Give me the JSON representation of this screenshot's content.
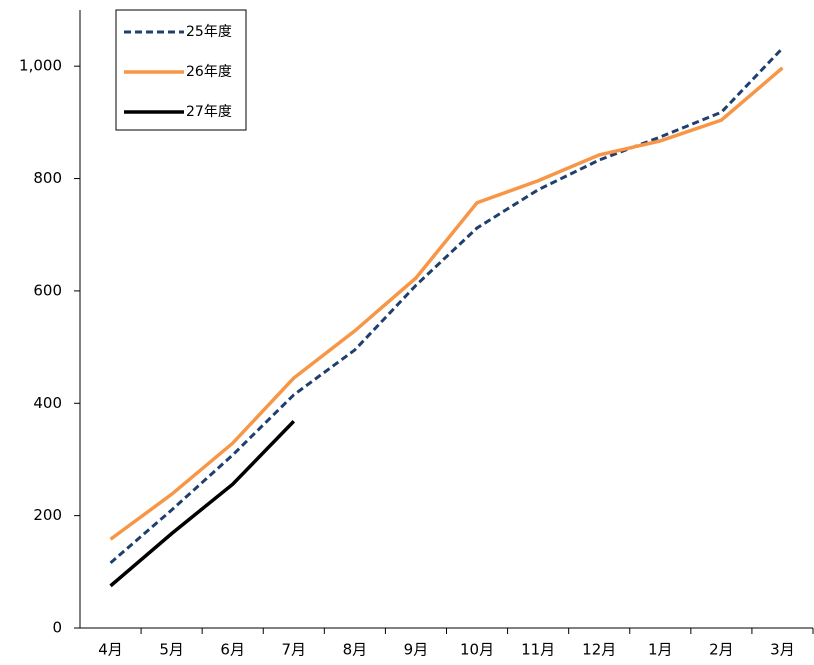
{
  "chart_data": {
    "type": "line",
    "categories": [
      "4月",
      "5月",
      "6月",
      "7月",
      "8月",
      "9月",
      "10月",
      "11月",
      "12月",
      "1月",
      "2月",
      "3月"
    ],
    "series": [
      {
        "name": "25年度",
        "color": "#1f3f6e",
        "dashed": true,
        "values": [
          116,
          210,
          308,
          415,
          495,
          610,
          712,
          780,
          833,
          874,
          918,
          1032
        ]
      },
      {
        "name": "26年度",
        "color": "#f79646",
        "dashed": false,
        "values": [
          158,
          238,
          329,
          445,
          529,
          623,
          757,
          796,
          842,
          867,
          904,
          997
        ]
      },
      {
        "name": "27年度",
        "color": "#000000",
        "dashed": false,
        "values": [
          75,
          168,
          256,
          368,
          null,
          null,
          null,
          null,
          null,
          null,
          null,
          null
        ]
      }
    ],
    "ylim": [
      0,
      1100
    ],
    "yticks": [
      0,
      200,
      400,
      600,
      800,
      {
        "value": 1000,
        "label": "1,000"
      }
    ],
    "legend": "top-left"
  }
}
